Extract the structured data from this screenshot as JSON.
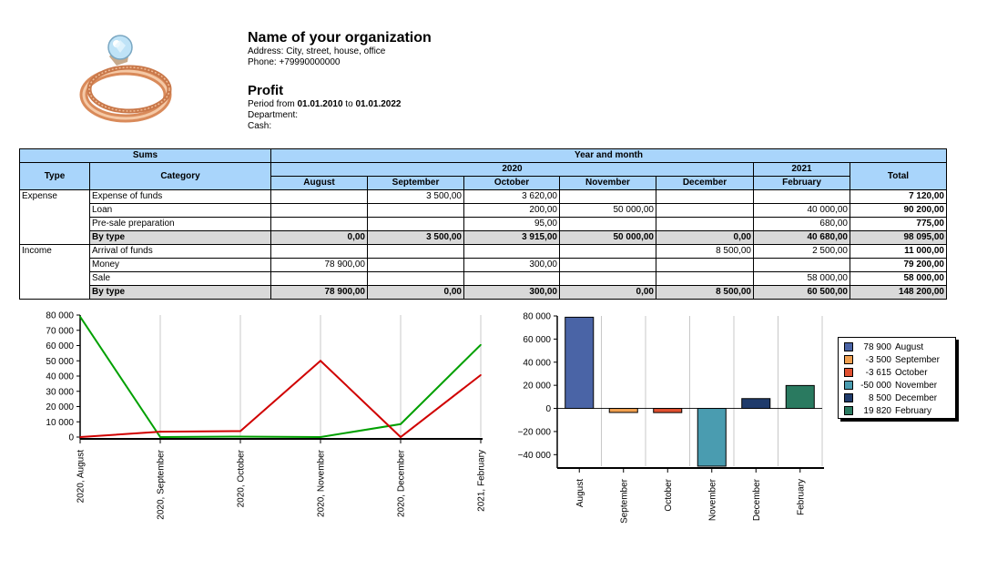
{
  "header": {
    "org_name": "Name of your organization",
    "address": "Address: City, street, house, office",
    "phone": "Phone: +79990000000",
    "report_title": "Profit",
    "period_prefix": "Period from ",
    "period_from": "01.01.2010",
    "period_to_word": " to ",
    "period_to": "01.01.2022",
    "department": "Department:",
    "cash": "Cash:"
  },
  "table": {
    "h_sums": "Sums",
    "h_year_month": "Year and month",
    "h_type": "Type",
    "h_category": "Category",
    "h_2020": "2020",
    "h_2021": "2021",
    "h_total": "Total",
    "months": [
      "August",
      "September",
      "October",
      "November",
      "December",
      "February"
    ],
    "expense_label": "Expense",
    "income_label": "Income",
    "expense_rows": [
      {
        "category": "Expense of funds",
        "values": [
          "",
          "3 500,00",
          "3 620,00",
          "",
          "",
          ""
        ],
        "total": "7 120,00"
      },
      {
        "category": "Loan",
        "values": [
          "",
          "",
          "200,00",
          "50 000,00",
          "",
          "40 000,00"
        ],
        "total": "90 200,00"
      },
      {
        "category": "Pre-sale preparation",
        "values": [
          "",
          "",
          "95,00",
          "",
          "",
          "680,00"
        ],
        "total": "775,00"
      },
      {
        "category": "By type",
        "values": [
          "0,00",
          "3 500,00",
          "3 915,00",
          "50 000,00",
          "0,00",
          "40 680,00"
        ],
        "total": "98 095,00"
      }
    ],
    "income_rows": [
      {
        "category": "Arrival of funds",
        "values": [
          "",
          "",
          "",
          "",
          "8 500,00",
          "2 500,00"
        ],
        "total": "11 000,00"
      },
      {
        "category": "Money",
        "values": [
          "78 900,00",
          "",
          "300,00",
          "",
          "",
          ""
        ],
        "total": "79 200,00"
      },
      {
        "category": "Sale",
        "values": [
          "",
          "",
          "",
          "",
          "",
          "58 000,00"
        ],
        "total": "58 000,00"
      },
      {
        "category": "By type",
        "values": [
          "78 900,00",
          "0,00",
          "300,00",
          "0,00",
          "8 500,00",
          "60 500,00"
        ],
        "total": "148 200,00"
      }
    ]
  },
  "chart_data": [
    {
      "type": "line",
      "categories": [
        "2020, August",
        "2020, September",
        "2020, October",
        "2020, November",
        "2020, December",
        "2021, February"
      ],
      "series": [
        {
          "color": "#00a000",
          "values": [
            78900,
            0,
            300,
            0,
            8500,
            60500
          ]
        },
        {
          "color": "#d00000",
          "values": [
            0,
            3500,
            3915,
            50000,
            0,
            40680
          ]
        }
      ],
      "ylim": [
        0,
        80000
      ],
      "yticks": [
        "0",
        "10 000",
        "20 000",
        "30 000",
        "40 000",
        "50 000",
        "60 000",
        "70 000",
        "80 000"
      ],
      "grid": true
    },
    {
      "type": "bar",
      "categories": [
        "August",
        "September",
        "October",
        "November",
        "December",
        "February"
      ],
      "values": [
        78900,
        -3500,
        -3615,
        -50000,
        8500,
        19820
      ],
      "colors": [
        "#4a64a6",
        "#f0a050",
        "#e05030",
        "#4a9cb0",
        "#1f3b6b",
        "#2a7a60"
      ],
      "ylim": [
        -50000,
        80000
      ],
      "yticks": [
        "−40 000",
        "−20 000",
        "0",
        "20 000",
        "40 000",
        "60 000",
        "80 000"
      ],
      "grid": true,
      "legend_position": "right",
      "legend": [
        {
          "value": "78 900",
          "label": "August"
        },
        {
          "value": "-3 500",
          "label": "September"
        },
        {
          "value": "-3 615",
          "label": "October"
        },
        {
          "value": "-50 000",
          "label": "November"
        },
        {
          "value": "8 500",
          "label": "December"
        },
        {
          "value": "19 820",
          "label": "February"
        }
      ]
    }
  ]
}
